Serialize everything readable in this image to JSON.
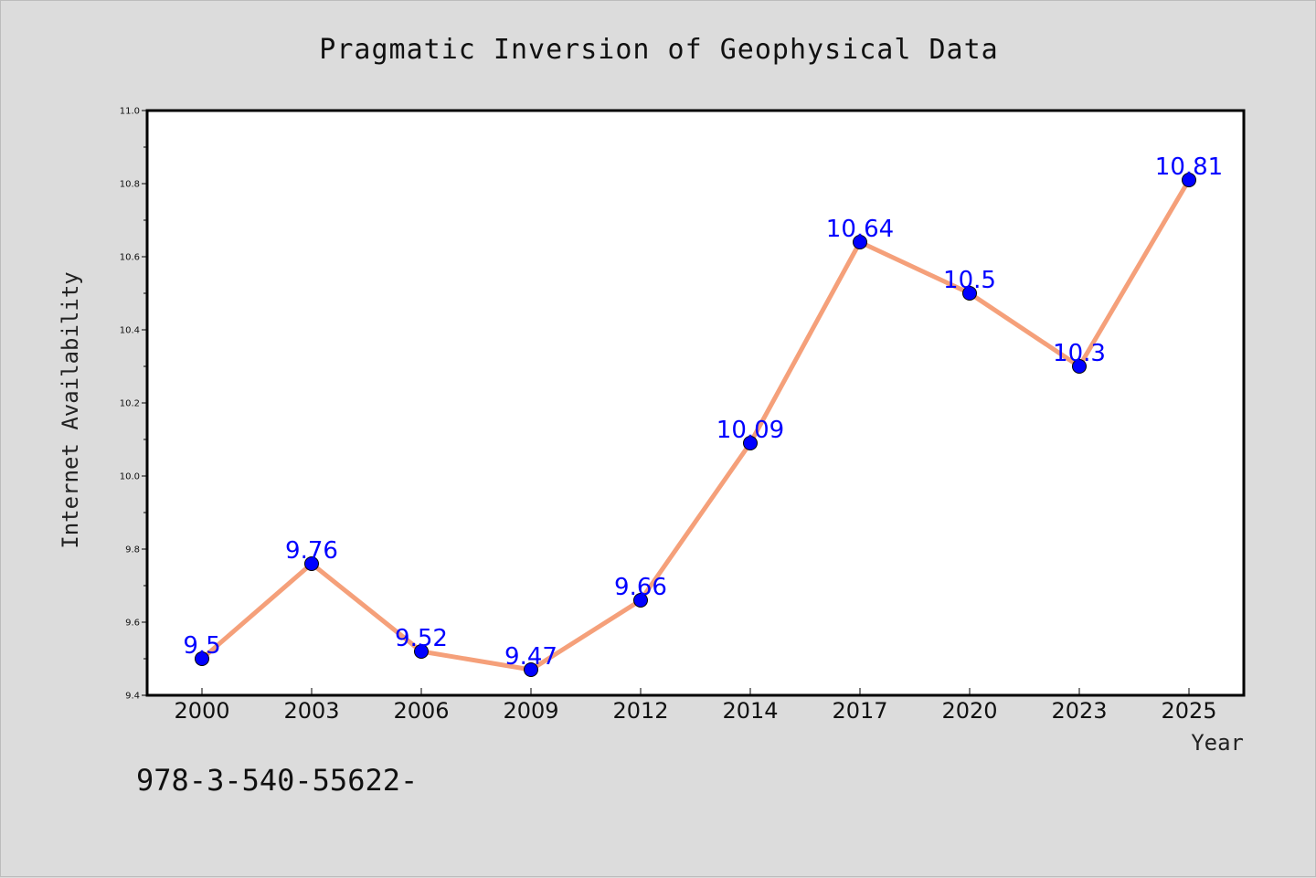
{
  "chart_data": {
    "type": "line",
    "title": "Pragmatic Inversion of Geophysical Data",
    "xlabel": "Year",
    "ylabel": "Internet Availability",
    "categories": [
      "2000",
      "2003",
      "2006",
      "2009",
      "2012",
      "2014",
      "2017",
      "2020",
      "2023",
      "2025"
    ],
    "series": [
      {
        "values": [
          9.5,
          9.76,
          9.52,
          9.47,
          9.66,
          10.09,
          10.64,
          10.5,
          10.3,
          10.81
        ],
        "labels": [
          "9.5",
          "9.76",
          "9.52",
          "9.47",
          "9.66",
          "10.09",
          "10.64",
          "10.5",
          "10.3",
          "10.81"
        ],
        "line_color": "#f5a07a",
        "marker_color": "#0000ff"
      }
    ],
    "ylim": [
      9.4,
      11.0
    ],
    "yticks": [
      "9.4",
      "9.6",
      "9.8",
      "10.0",
      "10.2",
      "10.4",
      "10.6",
      "10.8",
      "11.0"
    ],
    "grid": false,
    "legend": "none"
  },
  "footer_text": "978-3-540-55622-",
  "colors": {
    "background": "#dcdcdc",
    "plot_area": "#ffffff",
    "label": "#0000ff"
  }
}
